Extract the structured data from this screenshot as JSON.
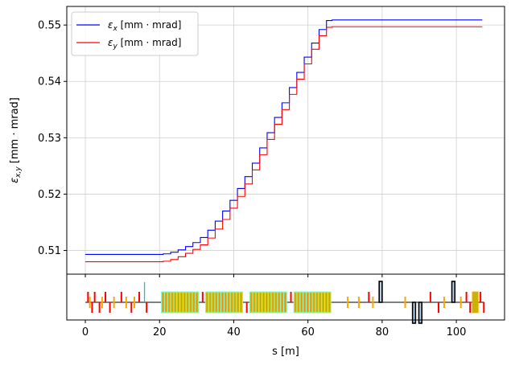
{
  "chart_data": [
    {
      "type": "line",
      "title": "",
      "xlabel": "",
      "ylabel_main": "ε",
      "ylabel_sub": "x,y",
      "ylabel_unit": " [mm · mrad]",
      "xlim": [
        -5,
        113
      ],
      "ylim": [
        0.5058,
        0.5533
      ],
      "xticks": [
        0,
        20,
        40,
        60,
        80,
        100
      ],
      "yticks": [
        0.51,
        0.52,
        0.53,
        0.54,
        0.55
      ],
      "ytick_labels": [
        "0.51",
        "0.52",
        "0.53",
        "0.54",
        "0.55"
      ],
      "grid": true,
      "legend": "top-left",
      "series": [
        {
          "name": "ε_x [mm · mrad]",
          "name_main": "ε",
          "name_sub": "x",
          "name_unit": " [mm · mrad]",
          "color": "#0000ff",
          "x": [
            0,
            10,
            20,
            22,
            24,
            26,
            28,
            30,
            32,
            34,
            36,
            38,
            40,
            42,
            44,
            46,
            48,
            50,
            52,
            54,
            56,
            58,
            60,
            62,
            64,
            66,
            67,
            80,
            100,
            107
          ],
          "y": [
            0.5093,
            0.5093,
            0.5093,
            0.5094,
            0.5097,
            0.5101,
            0.5107,
            0.5114,
            0.5123,
            0.5136,
            0.5152,
            0.517,
            0.5189,
            0.521,
            0.5231,
            0.5255,
            0.5282,
            0.5309,
            0.5336,
            0.5362,
            0.5389,
            0.5416,
            0.5443,
            0.5468,
            0.5492,
            0.5508,
            0.5509,
            0.5509,
            0.5509,
            0.5509
          ]
        },
        {
          "name": "ε_y [mm · mrad]",
          "name_main": "ε",
          "name_sub": "y",
          "name_unit": " [mm · mrad]",
          "color": "#ff0000",
          "x": [
            0,
            10,
            20,
            22,
            24,
            26,
            28,
            30,
            32,
            34,
            36,
            38,
            40,
            42,
            44,
            46,
            48,
            50,
            52,
            54,
            56,
            58,
            60,
            62,
            64,
            66,
            67,
            80,
            100,
            107
          ],
          "y": [
            0.508,
            0.508,
            0.508,
            0.5081,
            0.5084,
            0.5089,
            0.5095,
            0.5102,
            0.511,
            0.5122,
            0.5138,
            0.5155,
            0.5175,
            0.5196,
            0.5218,
            0.5243,
            0.527,
            0.5297,
            0.5324,
            0.535,
            0.5377,
            0.5404,
            0.5431,
            0.5457,
            0.5481,
            0.5496,
            0.5497,
            0.5497,
            0.5497,
            0.5497
          ]
        }
      ]
    },
    {
      "type": "lattice",
      "xlabel": "s [m]",
      "xlim": [
        -5,
        113
      ],
      "xticks": [
        0,
        20,
        40,
        60,
        80,
        100
      ],
      "xtick_labels": [
        "0",
        "20",
        "40",
        "60",
        "80",
        "100"
      ],
      "elements": [
        {
          "kind": "quad",
          "s": 0.5,
          "len": 0.3,
          "dir": 1,
          "color": "#ff0000"
        },
        {
          "kind": "quad",
          "s": 1.6,
          "len": 0.3,
          "dir": -1,
          "color": "#ff0000"
        },
        {
          "kind": "quad",
          "s": 2.3,
          "len": 0.3,
          "dir": 1,
          "color": "#ff0000"
        },
        {
          "kind": "quad",
          "s": 3.6,
          "len": 0.3,
          "dir": -1,
          "color": "#ff0000"
        },
        {
          "kind": "quad",
          "s": 5.2,
          "len": 0.3,
          "dir": 1,
          "color": "#ff0000"
        },
        {
          "kind": "quad",
          "s": 6.4,
          "len": 0.3,
          "dir": -1,
          "color": "#ff0000"
        },
        {
          "kind": "quad",
          "s": 9.5,
          "len": 0.3,
          "dir": 1,
          "color": "#ff0000"
        },
        {
          "kind": "quad",
          "s": 12.2,
          "len": 0.3,
          "dir": -1,
          "color": "#ff0000"
        },
        {
          "kind": "quad",
          "s": 14.3,
          "len": 0.3,
          "dir": 1,
          "color": "#ff0000"
        },
        {
          "kind": "quad",
          "s": 16.3,
          "len": 0.3,
          "dir": -1,
          "color": "#ff0000"
        },
        {
          "kind": "sext",
          "s": 1.0,
          "len": 0.2,
          "color": "#ffa500"
        },
        {
          "kind": "sext",
          "s": 4.3,
          "len": 0.2,
          "color": "#ffa500"
        },
        {
          "kind": "sext",
          "s": 7.5,
          "len": 0.2,
          "color": "#ffa500"
        },
        {
          "kind": "sext",
          "s": 10.8,
          "len": 0.2,
          "color": "#ffa500"
        },
        {
          "kind": "sext",
          "s": 13.0,
          "len": 0.2,
          "color": "#ffa500"
        },
        {
          "kind": "monitor",
          "s": 15.8,
          "color": "#1fbfbf"
        },
        {
          "kind": "undulator",
          "s": 20.5,
          "len": 10.0
        },
        {
          "kind": "undulator",
          "s": 32.4,
          "len": 10.0
        },
        {
          "kind": "undulator",
          "s": 44.3,
          "len": 10.0
        },
        {
          "kind": "undulator",
          "s": 56.2,
          "len": 10.0
        },
        {
          "kind": "quad",
          "s": 31.4,
          "len": 0.3,
          "dir": 1,
          "color": "#ff0000"
        },
        {
          "kind": "quad",
          "s": 43.3,
          "len": 0.3,
          "dir": -1,
          "color": "#ff0000"
        },
        {
          "kind": "quad",
          "s": 55.2,
          "len": 0.3,
          "dir": 1,
          "color": "#ff0000"
        },
        {
          "kind": "sext",
          "s": 70.5,
          "len": 0.2,
          "color": "#ffa500"
        },
        {
          "kind": "sext",
          "s": 73.5,
          "len": 0.2,
          "color": "#ffa500"
        },
        {
          "kind": "quad",
          "s": 76.2,
          "len": 0.4,
          "dir": 1,
          "color": "#ff0000"
        },
        {
          "kind": "sext",
          "s": 77.3,
          "len": 0.2,
          "color": "#ffa500"
        },
        {
          "kind": "bend",
          "s": 79.2,
          "len": 0.8,
          "dir": 1
        },
        {
          "kind": "sext",
          "s": 86.0,
          "len": 0.2,
          "color": "#ffa500"
        },
        {
          "kind": "bend",
          "s": 88.2,
          "len": 0.8,
          "dir": -1
        },
        {
          "kind": "bend",
          "s": 89.9,
          "len": 0.8,
          "dir": -1
        },
        {
          "kind": "quad",
          "s": 92.8,
          "len": 0.3,
          "dir": 1,
          "color": "#ff0000"
        },
        {
          "kind": "quad",
          "s": 95.0,
          "len": 0.3,
          "dir": -1,
          "color": "#ff0000"
        },
        {
          "kind": "sext",
          "s": 96.5,
          "len": 0.2,
          "color": "#ffa500"
        },
        {
          "kind": "bend",
          "s": 98.8,
          "len": 0.8,
          "dir": 1
        },
        {
          "kind": "sext",
          "s": 101.0,
          "len": 0.2,
          "color": "#ffa500"
        },
        {
          "kind": "quad",
          "s": 102.5,
          "len": 0.3,
          "dir": 1,
          "color": "#ff0000"
        },
        {
          "kind": "quad",
          "s": 103.5,
          "len": 0.3,
          "dir": -1,
          "color": "#ff0000"
        },
        {
          "kind": "cavity",
          "s": 104.3,
          "len": 1.6
        },
        {
          "kind": "quad",
          "s": 106.3,
          "len": 0.3,
          "dir": 1,
          "color": "#ff0000"
        },
        {
          "kind": "quad",
          "s": 107.2,
          "len": 0.4,
          "dir": -1,
          "color": "#ff0000"
        }
      ]
    }
  ]
}
